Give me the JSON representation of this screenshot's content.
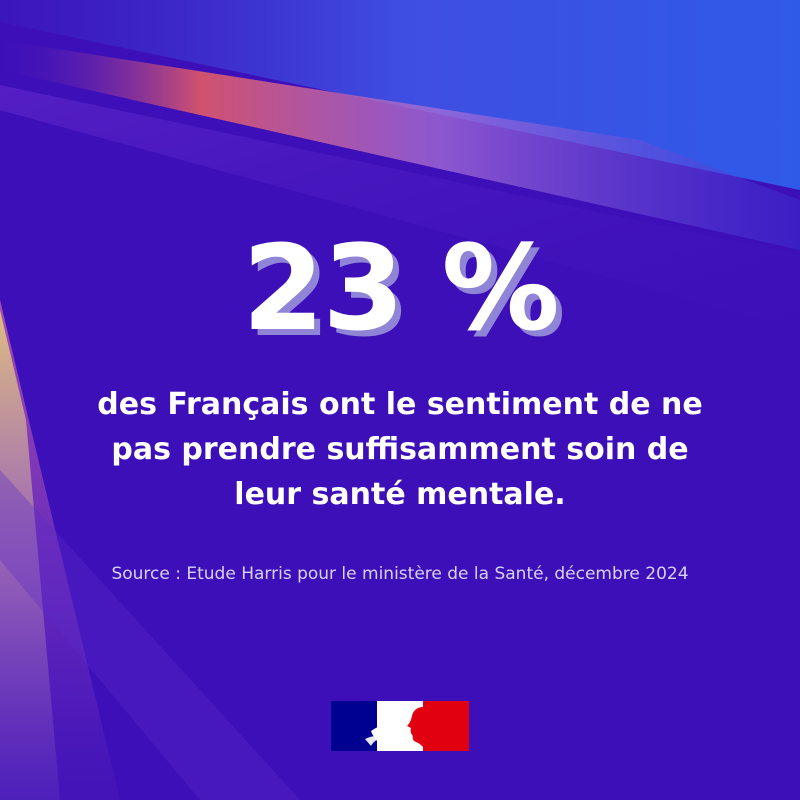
{
  "stat": {
    "value": "23 %"
  },
  "statement": {
    "lines": [
      "des Français ont le sentiment de ne",
      "pas prendre suffisamment soin de",
      "leur santé mentale."
    ]
  },
  "source": {
    "text": "Source : Etude Harris pour le ministère de la Santé, décembre 2024"
  },
  "logo": {
    "icon": "marianne-flag-logo"
  },
  "colors": {
    "background": "#3d0fb8",
    "stat_shadow": "#8f84d6",
    "flag_blue": "#000091",
    "flag_red": "#e1000f"
  }
}
